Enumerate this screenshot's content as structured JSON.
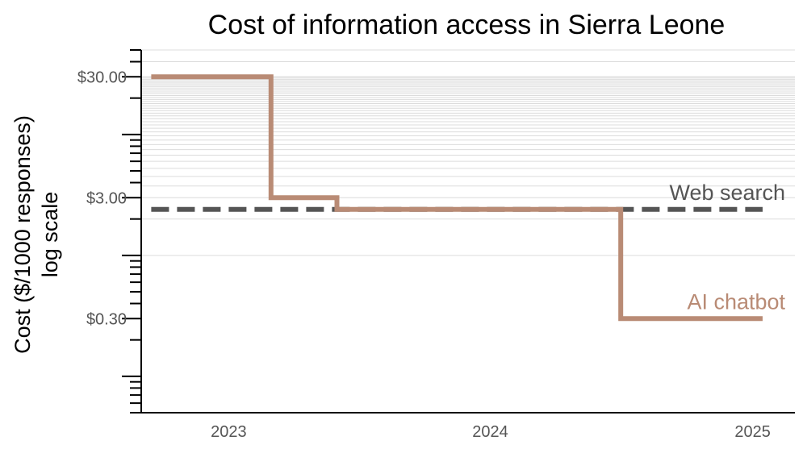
{
  "chart_data": {
    "type": "line",
    "title": "Cost of information access in Sierra Leone",
    "ylabel_line1": "Cost ($/1000 responses)",
    "ylabel_line2": "log scale",
    "xlabel": "",
    "y_scale": "log",
    "ylim": [
      0.05,
      50
    ],
    "xlim": [
      "2022-09-01",
      "2025-03-01"
    ],
    "y_ticks": [
      {
        "value": 30,
        "label": "$30.00"
      },
      {
        "value": 3,
        "label": "$3.00"
      },
      {
        "value": 0.3,
        "label": "$0.30"
      }
    ],
    "x_ticks": [
      {
        "value": "2023-01-01",
        "label": "2023"
      },
      {
        "value": "2024-01-01",
        "label": "2024"
      },
      {
        "value": "2025-01-01",
        "label": "2025"
      }
    ],
    "grid": "horizontal, upper region",
    "series": [
      {
        "name": "Web search",
        "style": "dashed",
        "color": "#555555",
        "x": [
          "2022-09-15",
          "2025-01-15"
        ],
        "y": [
          2.4,
          2.4
        ]
      },
      {
        "name": "AI chatbot",
        "style": "step",
        "color": "#b98b75",
        "x": [
          "2022-09-15",
          "2023-03-01",
          "2023-03-01",
          "2023-06-01",
          "2023-06-01",
          "2024-07-01",
          "2024-07-01",
          "2025-01-15"
        ],
        "y": [
          30,
          30,
          3,
          3,
          2.4,
          2.4,
          0.3,
          0.3
        ]
      }
    ]
  }
}
